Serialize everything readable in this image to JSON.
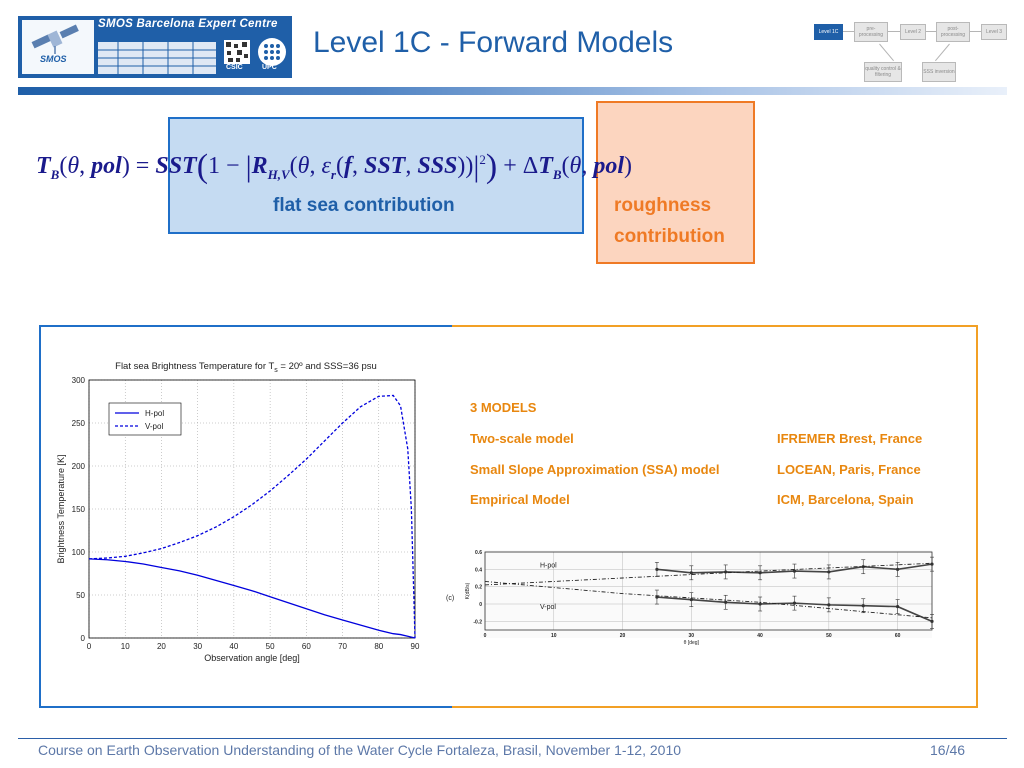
{
  "header": {
    "logo_title": "SMOS Barcelona Expert Centre",
    "logo_smos": "SMOS",
    "logo_csic": "CSIC",
    "logo_upc": "UPC",
    "title": "Level 1C - Forward Models"
  },
  "flow": {
    "boxes": [
      "Level 1C",
      "pre-processing",
      "Level 2",
      "post-processing",
      "Level 3",
      "quality control & filtering",
      "SSS inversion"
    ],
    "active_color": "#1f5fa8"
  },
  "formula": {
    "flat_label": "flat sea contribution",
    "rough_label_1": "roughness",
    "rough_label_2": "contribution"
  },
  "models": {
    "heading": "3 MODELS",
    "rows": [
      {
        "name": "Two-scale model",
        "institution": "IFREMER Brest, France"
      },
      {
        "name": "Small Slope Approximation (SSA) model",
        "institution": "LOCEAN, Paris, France"
      },
      {
        "name": "Empirical Model",
        "institution": "ICM, Barcelona, Spain"
      }
    ]
  },
  "footer": {
    "text": "Course on Earth Observation Understanding of the Water Cycle Fortaleza, Brasil, November 1-12, 2010",
    "page": "16/46"
  },
  "chart_data": [
    {
      "type": "line",
      "title": "Flat sea Brightness Temperature for T = 20º and SSS=36 psu",
      "title_prefix": "Flat sea Brightness Temperature for T",
      "title_sub": "s",
      "title_suffix": " = 20º and SSS=36 psu",
      "xlabel": "Observation angle [deg]",
      "ylabel": "Brightness Temperature [K]",
      "xlim": [
        0,
        90
      ],
      "ylim": [
        0,
        300
      ],
      "xticks": [
        0,
        10,
        20,
        30,
        40,
        50,
        60,
        70,
        80,
        90
      ],
      "yticks": [
        0,
        50,
        100,
        150,
        200,
        250,
        300
      ],
      "grid": true,
      "legend": "top-left",
      "x": [
        0,
        5,
        10,
        15,
        20,
        25,
        30,
        35,
        40,
        45,
        50,
        55,
        60,
        65,
        70,
        75,
        80,
        84,
        86,
        88,
        89,
        90
      ],
      "series": [
        {
          "name": "H-pol",
          "style": "solid",
          "color": "#0000dd",
          "values": [
            92,
            91,
            89,
            86,
            82,
            78,
            73,
            67,
            61,
            55,
            48,
            41,
            34,
            27,
            21,
            15,
            9,
            5,
            4,
            2,
            1,
            0
          ]
        },
        {
          "name": "V-pol",
          "style": "dashed",
          "color": "#0000dd",
          "values": [
            92,
            93,
            95,
            99,
            104,
            111,
            119,
            129,
            141,
            155,
            171,
            189,
            208,
            229,
            250,
            269,
            281,
            282,
            270,
            220,
            150,
            0
          ]
        }
      ]
    },
    {
      "type": "line",
      "panel_label": "(c)",
      "xlabel": "θ [deg]",
      "ylabel": "K(dB/s)",
      "xlim": [
        0,
        65
      ],
      "ylim": [
        -0.3,
        0.6
      ],
      "xticks": [
        0,
        10,
        20,
        30,
        40,
        50,
        60
      ],
      "yticks": [
        -0.2,
        0,
        0.2,
        0.4,
        0.6
      ],
      "grid": true,
      "series": [
        {
          "name": "H-pol",
          "style": "solid",
          "x": [
            25,
            30,
            35,
            40,
            45,
            50,
            55,
            60,
            65
          ],
          "values": [
            0.4,
            0.36,
            0.37,
            0.36,
            0.38,
            0.37,
            0.43,
            0.4,
            0.46
          ]
        },
        {
          "name": "H-pol model",
          "style": "dashed",
          "x": [
            0,
            20,
            40,
            65
          ],
          "values": [
            0.22,
            0.3,
            0.38,
            0.47
          ]
        },
        {
          "name": "V-pol",
          "style": "solid",
          "x": [
            25,
            30,
            35,
            40,
            45,
            50,
            55,
            60,
            65
          ],
          "values": [
            0.08,
            0.05,
            0.02,
            0.0,
            0.01,
            -0.01,
            -0.02,
            -0.03,
            -0.2
          ]
        },
        {
          "name": "V-pol model",
          "style": "dashed",
          "x": [
            0,
            20,
            40,
            65
          ],
          "values": [
            0.26,
            0.12,
            0.02,
            -0.16
          ]
        }
      ]
    }
  ]
}
